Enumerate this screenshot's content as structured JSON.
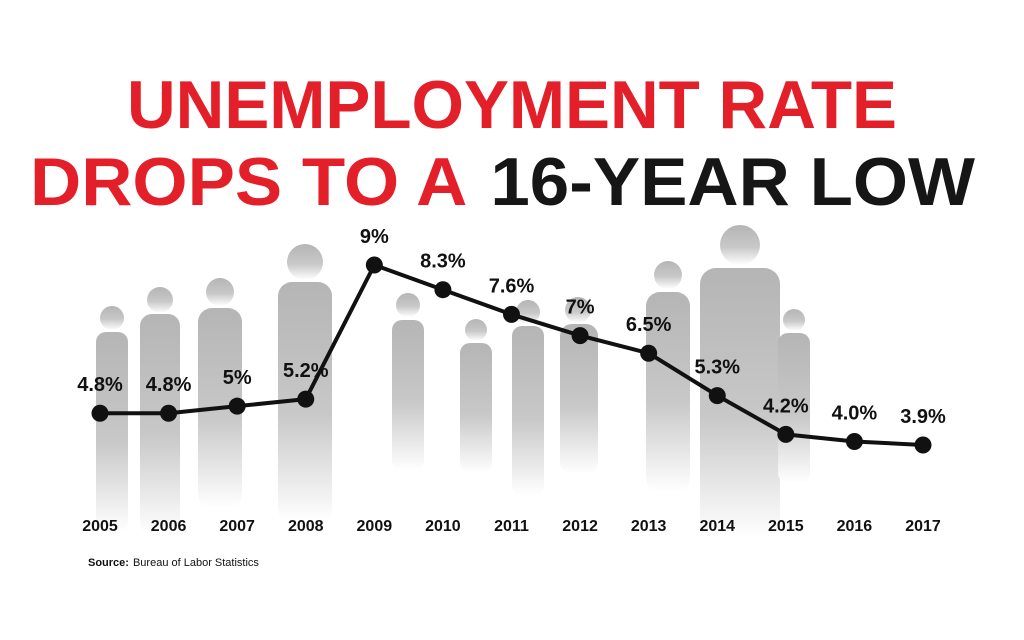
{
  "chart_data": {
    "type": "line",
    "title": {
      "line1": "UNEMPLOYMENT RATE",
      "line2": "DROPS TO A",
      "line2_dark": "16-YEAR LOW"
    },
    "categories": [
      "2005",
      "2006",
      "2007",
      "2008",
      "2009",
      "2010",
      "2011",
      "2012",
      "2013",
      "2014",
      "2015",
      "2016",
      "2017"
    ],
    "values": [
      4.8,
      4.8,
      5,
      5.2,
      9,
      8.3,
      7.6,
      7,
      6.5,
      5.3,
      4.2,
      4.0,
      3.9
    ],
    "value_labels": [
      "4.8%",
      "4.8%",
      "5%",
      "5.2%",
      "9%",
      "8.3%",
      "7.6%",
      "7%",
      "6.5%",
      "5.3%",
      "4.2%",
      "4.0%",
      "3.9%"
    ],
    "color": "#111111",
    "title_color": "#e3202a",
    "title_dark_color": "#161616",
    "source_label": "Source:",
    "source": "Bureau of Labor Statistics"
  }
}
